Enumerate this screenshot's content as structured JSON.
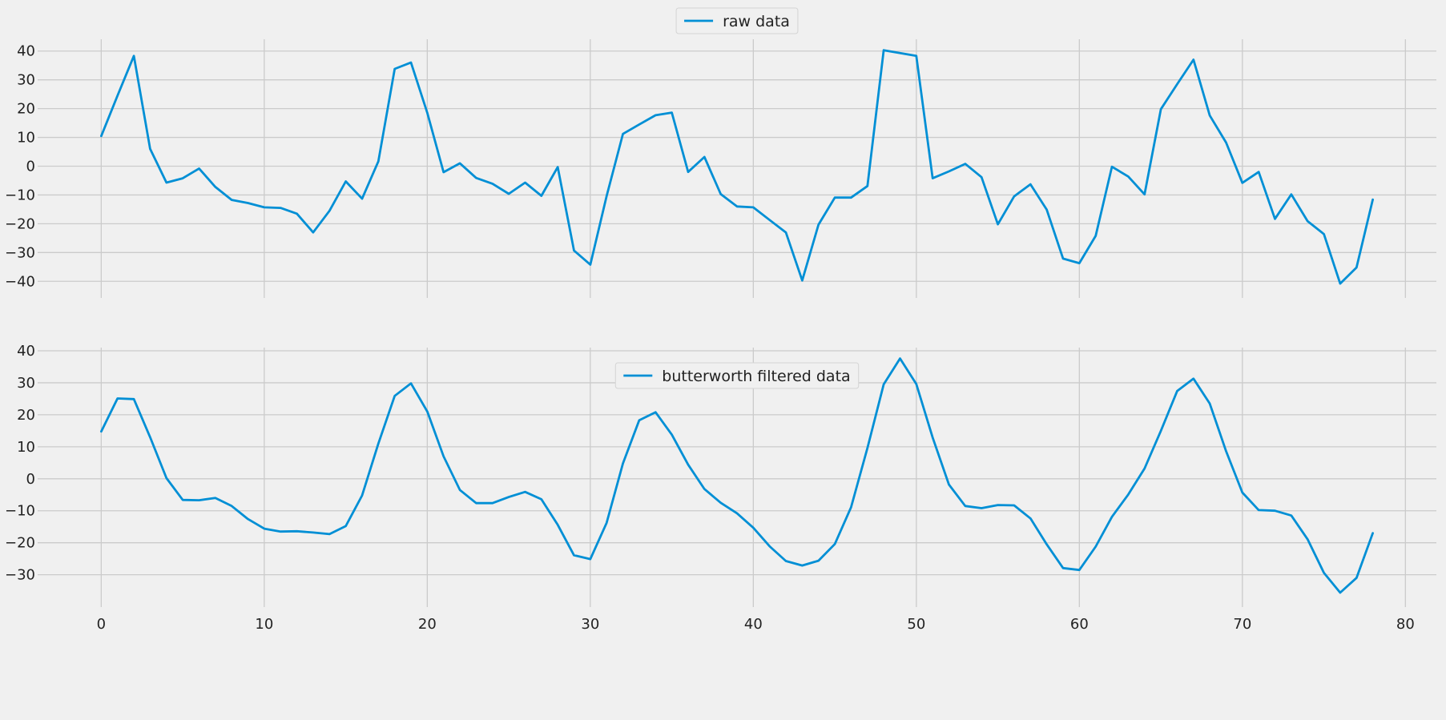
{
  "chart_data": [
    {
      "type": "line",
      "legend": "raw data",
      "legend_position": "top-center",
      "grid": true,
      "color": "#008fd5",
      "x": [
        0,
        1,
        2,
        3,
        4,
        5,
        6,
        7,
        8,
        9,
        10,
        11,
        12,
        13,
        14,
        15,
        16,
        17,
        18,
        19,
        20,
        21,
        22,
        23,
        24,
        25,
        26,
        27,
        28,
        29,
        30,
        31,
        32,
        33,
        34,
        35,
        36,
        37,
        38,
        39,
        40,
        41,
        42,
        43,
        44,
        45,
        46,
        47,
        48,
        49,
        50,
        51,
        52,
        53,
        54,
        55,
        56,
        57,
        58,
        59,
        60,
        61,
        62,
        63,
        64,
        65,
        66,
        67,
        68,
        69,
        70,
        71,
        72,
        73,
        74,
        75,
        76,
        77,
        78
      ],
      "y": [
        10.5,
        24.5,
        38.3,
        6,
        -5.7,
        -4.2,
        -0.8,
        -7.2,
        -11.7,
        -12.8,
        -14.3,
        -14.5,
        -16.5,
        -23,
        -15.5,
        -5.3,
        -11.3,
        1.7,
        33.8,
        36,
        18.5,
        -2.1,
        1,
        -4.1,
        -6.1,
        -9.6,
        -5.7,
        -10.3,
        -0.3,
        -29.3,
        -34.2,
        -10.4,
        11.2,
        14.5,
        17.7,
        18.6,
        -2,
        3.2,
        -9.7,
        -14,
        -14.3,
        -18.7,
        -23,
        -39.7,
        -20.3,
        -10.9,
        -10.9,
        -6.9,
        40.3,
        39.3,
        38.3,
        -4.2,
        -1.8,
        0.8,
        -3.8,
        -20.2,
        -10.5,
        -6.3,
        -15.1,
        -32.1,
        -33.7,
        -24.2,
        -0.2,
        -3.6,
        -9.8,
        19.8,
        28.5,
        37,
        17.6,
        8.2,
        -5.8,
        -2,
        -18.3,
        -9.8,
        -19.1,
        -23.6,
        -40.8,
        -35.2,
        -11.6
      ],
      "xlim": [
        -3.9,
        81.9
      ],
      "ylim": [
        -44.1,
        44.1
      ],
      "yticks": [
        -40,
        -30,
        -20,
        -10,
        0,
        10,
        20,
        30,
        40
      ],
      "yticklabels": [
        "−40",
        "−30",
        "−20",
        "−10",
        "0",
        "10",
        "20",
        "30",
        "40"
      ]
    },
    {
      "type": "line",
      "legend": "butterworth filtered data",
      "legend_position": "top-center",
      "grid": true,
      "color": "#008fd5",
      "x": [
        0,
        1,
        2,
        3,
        4,
        5,
        6,
        7,
        8,
        9,
        10,
        11,
        12,
        13,
        14,
        15,
        16,
        17,
        18,
        19,
        20,
        21,
        22,
        23,
        24,
        25,
        26,
        27,
        28,
        29,
        30,
        31,
        32,
        33,
        34,
        35,
        36,
        37,
        38,
        39,
        40,
        41,
        42,
        43,
        44,
        45,
        46,
        47,
        48,
        49,
        50,
        51,
        52,
        53,
        54,
        55,
        56,
        57,
        58,
        59,
        60,
        61,
        62,
        63,
        64,
        65,
        66,
        67,
        68,
        69,
        70,
        71,
        72,
        73,
        74,
        75,
        76,
        77,
        78
      ],
      "y": [
        14.8,
        25.1,
        24.9,
        13,
        0.2,
        -6.6,
        -6.7,
        -6,
        -8.5,
        -12.6,
        -15.6,
        -16.5,
        -16.4,
        -16.8,
        -17.3,
        -14.8,
        -5.2,
        11,
        25.9,
        29.8,
        21,
        7,
        -3.5,
        -7.6,
        -7.6,
        -5.7,
        -4.1,
        -6.4,
        -14.4,
        -23.9,
        -25.1,
        -13.8,
        4.8,
        18.3,
        20.8,
        13.8,
        4.4,
        -3.2,
        -7.5,
        -10.8,
        -15.3,
        -21.1,
        -25.7,
        -27.1,
        -25.6,
        -20.4,
        -8.9,
        9.6,
        29.5,
        37.6,
        29.6,
        12.9,
        -1.8,
        -8.5,
        -9.2,
        -8.2,
        -8.3,
        -12.4,
        -20.5,
        -27.9,
        -28.5,
        -21.2,
        -11.9,
        -4.9,
        3.2,
        15,
        27.4,
        31.3,
        23.5,
        8.6,
        -4.3,
        -9.8,
        -10,
        -11.5,
        -18.9,
        -29.4,
        -35.6,
        -31,
        -17
      ],
      "xlim": [
        -3.9,
        81.9
      ],
      "ylim": [
        -38.6,
        41
      ],
      "yticks": [
        -30,
        -20,
        -10,
        0,
        10,
        20,
        30,
        40
      ],
      "yticklabels": [
        "−30",
        "−20",
        "−10",
        "0",
        "10",
        "20",
        "30",
        "40"
      ],
      "xticks": [
        0,
        10,
        20,
        30,
        40,
        50,
        60,
        70,
        80
      ],
      "xticklabels": [
        "0",
        "10",
        "20",
        "30",
        "40",
        "50",
        "60",
        "70",
        "80"
      ]
    }
  ]
}
